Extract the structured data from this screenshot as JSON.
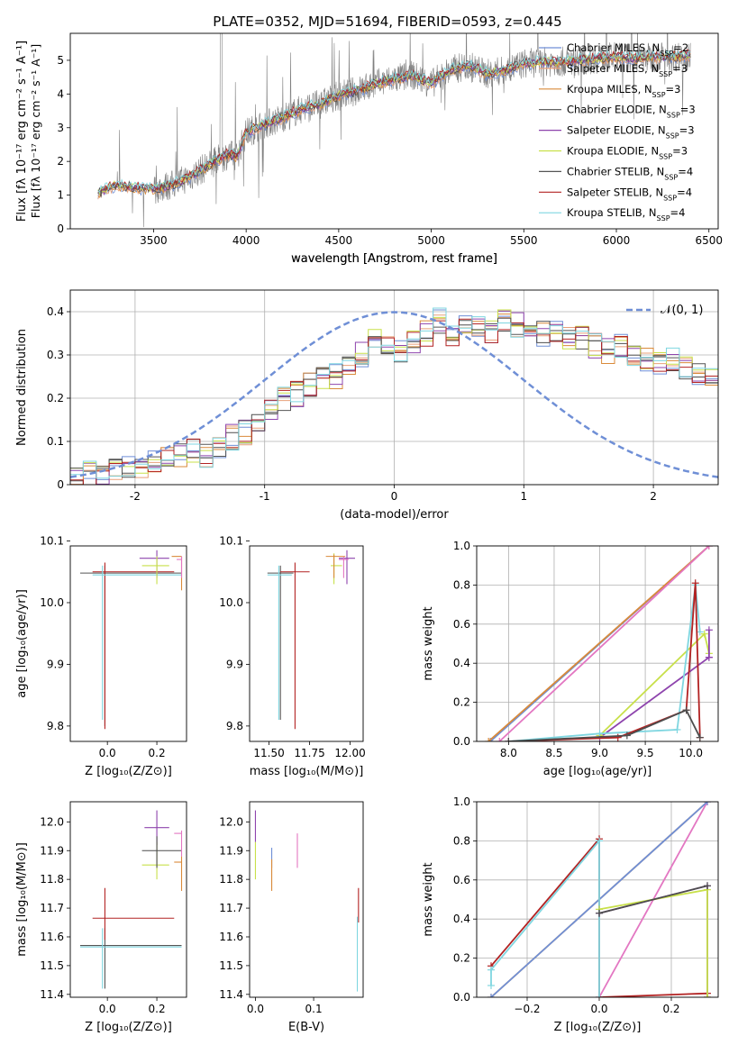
{
  "figure_title": "PLATE=0352, MJD=51694, FIBERID=0593, z=0.445",
  "colors": {
    "Chabrier MILES": "#6f8fd6",
    "Salpeter MILES": "#e8a07a",
    "Kroupa MILES": "#d98a3a",
    "Chabrier ELODIE": "#4d4d4d",
    "Salpeter ELODIE": "#8e44ad",
    "Kroupa ELODIE": "#c8e04a",
    "Chabrier STELIB": "#555555",
    "Salpeter STELIB": "#b22222",
    "Kroupa STELIB": "#7fd6e0",
    "pink": "#e377c2",
    "gauss": "#6f8fd6",
    "data": "#808080"
  },
  "chart_data": [
    {
      "id": "spectrum",
      "type": "line",
      "title": "PLATE=0352, MJD=51694, FIBERID=0593, z=0.445",
      "xlabel": "wavelength [Angstrom, rest frame]",
      "ylabel": "Flux [fλ 10⁻¹⁷ erg cm⁻² s⁻¹ A⁻¹]",
      "xlim": [
        3050,
        6550
      ],
      "ylim": [
        0,
        5.8
      ],
      "xticks": [
        3500,
        4000,
        4500,
        5000,
        5500,
        6000,
        6500
      ],
      "yticks": [
        0,
        1,
        2,
        3,
        4,
        5
      ],
      "legend_position": "right",
      "legend": [
        {
          "name": "Chabrier MILES",
          "nssp": "2"
        },
        {
          "name": "Salpeter MILES",
          "nssp": "3"
        },
        {
          "name": "Kroupa MILES",
          "nssp": "3"
        },
        {
          "name": "Chabrier ELODIE",
          "nssp": "3"
        },
        {
          "name": "Salpeter ELODIE",
          "nssp": "3"
        },
        {
          "name": "Kroupa ELODIE",
          "nssp": "3"
        },
        {
          "name": "Chabrier STELIB",
          "nssp": "4"
        },
        {
          "name": "Salpeter STELIB",
          "nssp": "4"
        },
        {
          "name": "Kroupa STELIB",
          "nssp": "4"
        }
      ],
      "legend_suffix": "N",
      "legend_sub": "SSP",
      "continuum": {
        "x": [
          3200,
          3250,
          3300,
          3350,
          3400,
          3450,
          3500,
          3600,
          3700,
          3800,
          3900,
          3950,
          4000,
          4100,
          4200,
          4300,
          4400,
          4500,
          4600,
          4700,
          4800,
          4900,
          5000,
          5100,
          5200,
          5300,
          5400,
          5500,
          5600,
          5700,
          5800,
          5900,
          6000,
          6100,
          6200,
          6300,
          6400
        ],
        "y": [
          1.05,
          1.2,
          1.3,
          1.25,
          1.22,
          1.2,
          1.18,
          1.3,
          1.55,
          1.9,
          2.2,
          2.15,
          2.85,
          3.1,
          3.3,
          3.55,
          3.7,
          3.95,
          4.1,
          4.3,
          4.45,
          4.55,
          4.3,
          4.7,
          4.85,
          4.6,
          4.7,
          4.9,
          4.95,
          4.95,
          5.0,
          5.05,
          5.1,
          5.05,
          5.1,
          5.1,
          5.15
        ]
      }
    },
    {
      "id": "residuals",
      "type": "histogram",
      "xlabel": "(data-model)/error",
      "ylabel": "Normed distribution",
      "xlim": [
        -2.5,
        2.5
      ],
      "ylim": [
        0,
        0.45
      ],
      "xticks": [
        -2,
        -1,
        0,
        1,
        2
      ],
      "yticks": [
        0.0,
        0.1,
        0.2,
        0.3,
        0.4
      ],
      "grid": true,
      "legend": [
        {
          "name": "𝒩(0, 1)"
        }
      ],
      "legend_position": "top-right",
      "bin_width": 0.1,
      "bin_start": -2.5,
      "base_heights": [
        0.02,
        0.025,
        0.03,
        0.04,
        0.045,
        0.045,
        0.05,
        0.06,
        0.07,
        0.08,
        0.07,
        0.09,
        0.11,
        0.12,
        0.15,
        0.18,
        0.2,
        0.21,
        0.23,
        0.25,
        0.25,
        0.28,
        0.3,
        0.33,
        0.33,
        0.31,
        0.33,
        0.35,
        0.38,
        0.35,
        0.37,
        0.36,
        0.35,
        0.38,
        0.37,
        0.36,
        0.35,
        0.35,
        0.34,
        0.34,
        0.32,
        0.31,
        0.32,
        0.3,
        0.29,
        0.28,
        0.29,
        0.27,
        0.26,
        0.25,
        0.22,
        0.2,
        0.19,
        0.18,
        0.17,
        0.15,
        0.13,
        0.12,
        0.1,
        0.09,
        0.08,
        0.08,
        0.07,
        0.06,
        0.06,
        0.05,
        0.05,
        0.04,
        0.03,
        0.03
      ],
      "series_names": [
        "Chabrier MILES",
        "Salpeter MILES",
        "Kroupa MILES",
        "Chabrier ELODIE",
        "Salpeter ELODIE",
        "Kroupa ELODIE",
        "Chabrier STELIB",
        "Salpeter STELIB",
        "Kroupa STELIB"
      ]
    },
    {
      "id": "age_vs_Z",
      "type": "errorbar",
      "xlabel": "Z [log₁₀(Z/Z⊙)]",
      "ylabel": "age  [log₁₀(age/yr)]",
      "xlim": [
        -0.15,
        0.32
      ],
      "ylim": [
        9.775,
        10.092
      ],
      "xticks": [
        -0.0,
        0.2
      ],
      "xticklabels": [
        "0.0",
        "0.2"
      ],
      "yticks": [
        9.8,
        9.9,
        10.0,
        10.1
      ],
      "yticklabels": [
        "9.8",
        "9.9",
        "10.0",
        "10.1"
      ],
      "points": [
        {
          "s": "Chabrier STELIB",
          "x": -0.01,
          "y": 10.048,
          "xe": [
            -0.11,
            0.3
          ],
          "ye": [
            9.8,
            10.06
          ]
        },
        {
          "s": "Salpeter STELIB",
          "x": -0.01,
          "y": 10.05,
          "xe": [
            -0.06,
            0.27
          ],
          "ye": [
            9.795,
            10.065
          ]
        },
        {
          "s": "Kroupa STELIB",
          "x": -0.02,
          "y": 10.045,
          "xe": [
            -0.06,
            0.3
          ],
          "ye": [
            9.81,
            10.06
          ]
        },
        {
          "s": "Salpeter ELODIE",
          "x": 0.2,
          "y": 10.072,
          "xe": [
            0.13,
            0.25
          ],
          "ye": [
            10.04,
            10.085
          ]
        },
        {
          "s": "Kroupa ELODIE",
          "x": 0.2,
          "y": 10.06,
          "xe": [
            0.14,
            0.25
          ],
          "ye": [
            10.03,
            10.075
          ]
        },
        {
          "s": "Kroupa MILES",
          "x": 0.3,
          "y": 10.075,
          "xe": [
            0.26,
            0.3
          ],
          "ye": [
            10.02,
            10.075
          ]
        },
        {
          "s": "pink",
          "x": 0.3,
          "y": 10.07,
          "xe": [
            0.28,
            0.3
          ],
          "ye": [
            10.04,
            10.075
          ]
        }
      ]
    },
    {
      "id": "age_vs_mass",
      "type": "errorbar",
      "xlabel": "mass [log₁₀(M/M⊙)]",
      "ylabel": "",
      "xlim": [
        11.38,
        12.08
      ],
      "ylim": [
        9.775,
        10.092
      ],
      "xticks": [
        11.5,
        11.75,
        12.0
      ],
      "xticklabels": [
        "11.50",
        "11.75",
        "12.00"
      ],
      "yticks": [
        9.8,
        9.9,
        10.0,
        10.1
      ],
      "yticklabels": [
        "9.8",
        "9.9",
        "10.0",
        "10.1"
      ],
      "points": [
        {
          "s": "Chabrier STELIB",
          "x": 11.57,
          "y": 10.048,
          "xe": [
            11.49,
            11.65
          ],
          "ye": [
            9.81,
            10.06
          ]
        },
        {
          "s": "Salpeter STELIB",
          "x": 11.66,
          "y": 10.05,
          "xe": [
            11.57,
            11.75
          ],
          "ye": [
            9.795,
            10.065
          ]
        },
        {
          "s": "Kroupa STELIB",
          "x": 11.56,
          "y": 10.045,
          "xe": [
            11.49,
            11.64
          ],
          "ye": [
            9.81,
            10.06
          ]
        },
        {
          "s": "Salpeter ELODIE",
          "x": 11.98,
          "y": 10.072,
          "xe": [
            11.93,
            12.03
          ],
          "ye": [
            10.03,
            10.085
          ]
        },
        {
          "s": "Kroupa ELODIE",
          "x": 11.9,
          "y": 10.06,
          "xe": [
            11.88,
            11.95
          ],
          "ye": [
            10.03,
            10.08
          ]
        },
        {
          "s": "Kroupa MILES",
          "x": 11.9,
          "y": 10.075,
          "xe": [
            11.85,
            11.97
          ],
          "ye": [
            10.04,
            10.078
          ]
        },
        {
          "s": "pink",
          "x": 11.96,
          "y": 10.07,
          "xe": [
            11.93,
            11.99
          ],
          "ye": [
            10.04,
            10.075
          ]
        }
      ]
    },
    {
      "id": "massweight_vs_age",
      "type": "line",
      "xlabel": "age  [log₁₀(age/yr)]",
      "ylabel": "mass weight",
      "xlim": [
        7.65,
        10.3
      ],
      "ylim": [
        0,
        1.0
      ],
      "xticks": [
        8.0,
        8.5,
        9.0,
        9.5,
        10.0
      ],
      "xticklabels": [
        "8.0",
        "8.5",
        "9.0",
        "9.5",
        "10.0"
      ],
      "yticks": [
        0,
        0.2,
        0.4,
        0.6,
        0.8,
        1.0
      ],
      "yticklabels": [
        "0.0",
        "0.2",
        "0.4",
        "0.6",
        "0.8",
        "1.0"
      ],
      "grid": true,
      "series": [
        {
          "s": "Chabrier MILES",
          "x": [
            7.8,
            10.2
          ],
          "y": [
            0.0,
            1.0
          ]
        },
        {
          "s": "Kroupa MILES",
          "x": [
            7.78,
            10.2
          ],
          "y": [
            0.0,
            1.0
          ]
        },
        {
          "s": "pink",
          "x": [
            7.9,
            10.2
          ],
          "y": [
            0.0,
            1.0
          ]
        },
        {
          "s": "Salpeter ELODIE",
          "x": [
            8.0,
            9.0,
            10.2
          ],
          "y": [
            0.0,
            0.02,
            0.43
          ]
        },
        {
          "s": "Kroupa ELODIE",
          "x": [
            9.0,
            10.15,
            10.2
          ],
          "y": [
            0.03,
            0.55,
            0.45
          ]
        },
        {
          "s": "Kroupa STELIB",
          "x": [
            8.0,
            9.0,
            9.85,
            10.05,
            10.1
          ],
          "y": [
            0.0,
            0.04,
            0.06,
            0.8,
            0.56
          ]
        },
        {
          "s": "Salpeter STELIB",
          "x": [
            8.0,
            9.2,
            9.95,
            10.05,
            10.1
          ],
          "y": [
            0.0,
            0.02,
            0.16,
            0.81,
            0.02
          ]
        },
        {
          "s": "Chabrier ELODIE",
          "x": [
            8.0,
            9.3,
            9.95,
            10.1
          ],
          "y": [
            0.0,
            0.03,
            0.16,
            0.02
          ]
        },
        {
          "s": "Salpeter ELODIE",
          "x": [
            10.2,
            10.2
          ],
          "y": [
            0.43,
            0.57
          ]
        }
      ]
    },
    {
      "id": "mass_vs_Z",
      "type": "errorbar",
      "xlabel": "Z [log₁₀(Z/Z⊙)]",
      "ylabel": "mass [log₁₀(M/M⊙)]",
      "xlim": [
        -0.15,
        0.32
      ],
      "ylim": [
        11.39,
        12.07
      ],
      "xticks": [
        0.0,
        0.2
      ],
      "xticklabels": [
        "0.0",
        "0.2"
      ],
      "yticks": [
        11.4,
        11.5,
        11.6,
        11.7,
        11.8,
        11.9,
        12.0
      ],
      "yticklabels": [
        "11.4",
        "11.5",
        "11.6",
        "11.7",
        "11.8",
        "11.9",
        "12.0"
      ],
      "points": [
        {
          "s": "Chabrier STELIB",
          "x": -0.01,
          "y": 11.57,
          "xe": [
            -0.11,
            0.3
          ],
          "ye": [
            11.42,
            11.63
          ]
        },
        {
          "s": "Salpeter STELIB",
          "x": -0.01,
          "y": 11.665,
          "xe": [
            -0.06,
            0.27
          ],
          "ye": [
            11.59,
            11.77
          ]
        },
        {
          "s": "Kroupa STELIB",
          "x": -0.02,
          "y": 11.565,
          "xe": [
            -0.11,
            0.3
          ],
          "ye": [
            11.42,
            11.63
          ]
        },
        {
          "s": "Salpeter ELODIE",
          "x": 0.2,
          "y": 11.98,
          "xe": [
            0.15,
            0.25
          ],
          "ye": [
            11.92,
            12.04
          ]
        },
        {
          "s": "Kroupa ELODIE",
          "x": 0.2,
          "y": 11.85,
          "xe": [
            0.14,
            0.25
          ],
          "ye": [
            11.8,
            11.93
          ]
        },
        {
          "s": "Chabrier ELODIE",
          "x": 0.2,
          "y": 11.9,
          "xe": [
            0.14,
            0.3
          ],
          "ye": [
            11.84,
            11.95
          ]
        },
        {
          "s": "Kroupa MILES",
          "x": 0.3,
          "y": 11.86,
          "xe": [
            0.27,
            0.3
          ],
          "ye": [
            11.76,
            11.88
          ]
        },
        {
          "s": "pink",
          "x": 0.3,
          "y": 11.96,
          "xe": [
            0.27,
            0.3
          ],
          "ye": [
            11.88,
            11.97
          ]
        }
      ]
    },
    {
      "id": "mass_vs_EBV",
      "type": "errorbar",
      "xlabel": "E(B-V)",
      "ylabel": "",
      "xlim": [
        -0.01,
        0.185
      ],
      "ylim": [
        11.39,
        12.07
      ],
      "xticks": [
        0.0,
        0.1
      ],
      "xticklabels": [
        "0.0",
        "0.1"
      ],
      "yticks": [
        11.4,
        11.5,
        11.6,
        11.7,
        11.8,
        11.9,
        12.0
      ],
      "yticklabels": [
        "11.4",
        "11.5",
        "11.6",
        "11.7",
        "11.8",
        "11.9",
        "12.0"
      ],
      "points": [
        {
          "s": "Salpeter ELODIE",
          "x": 0.0,
          "y": 11.98,
          "xe": [
            0.0,
            0.0
          ],
          "ye": [
            11.93,
            12.04
          ]
        },
        {
          "s": "Kroupa ELODIE",
          "x": 0.0,
          "y": 11.85,
          "xe": [
            0.0,
            0.0
          ],
          "ye": [
            11.8,
            11.93
          ]
        },
        {
          "s": "Chabrier MILES",
          "x": 0.028,
          "y": 11.87,
          "xe": [
            0.028,
            0.028
          ],
          "ye": [
            11.84,
            11.91
          ]
        },
        {
          "s": "Kroupa MILES",
          "x": 0.028,
          "y": 11.82,
          "xe": [
            0.028,
            0.028
          ],
          "ye": [
            11.76,
            11.87
          ]
        },
        {
          "s": "pink",
          "x": 0.072,
          "y": 11.9,
          "xe": [
            0.072,
            0.072
          ],
          "ye": [
            11.84,
            11.96
          ]
        },
        {
          "s": "Salpeter STELIB",
          "x": 0.177,
          "y": 11.7,
          "xe": [
            0.177,
            0.177
          ],
          "ye": [
            11.65,
            11.77
          ]
        },
        {
          "s": "Kroupa STELIB",
          "x": 0.175,
          "y": 11.55,
          "xe": [
            0.175,
            0.175
          ],
          "ye": [
            11.41,
            11.67
          ]
        }
      ]
    },
    {
      "id": "massweight_vs_Z",
      "type": "line",
      "xlabel": "Z [log₁₀(Z/Z⊙)]",
      "ylabel": "mass weight",
      "xlim": [
        -0.34,
        0.33
      ],
      "ylim": [
        0,
        1.0
      ],
      "xticks": [
        -0.2,
        0.0,
        0.2
      ],
      "xticklabels": [
        "−0.2",
        "0.0",
        "0.2"
      ],
      "yticks": [
        0,
        0.2,
        0.4,
        0.6,
        0.8,
        1.0
      ],
      "yticklabels": [
        "0.0",
        "0.2",
        "0.4",
        "0.6",
        "0.8",
        "1.0"
      ],
      "grid": true,
      "series": [
        {
          "s": "Kroupa MILES",
          "x": [
            -0.3,
            0.3
          ],
          "y": [
            0.0,
            1.0
          ]
        },
        {
          "s": "pink",
          "x": [
            0.0,
            0.3
          ],
          "y": [
            0.0,
            1.0
          ]
        },
        {
          "s": "Chabrier MILES",
          "x": [
            -0.3,
            0.3
          ],
          "y": [
            0.0,
            1.0
          ]
        },
        {
          "s": "Salpeter STELIB",
          "x": [
            -0.3,
            0.0,
            0.0,
            0.3,
            0.3
          ],
          "y": [
            0.16,
            0.81,
            0.0,
            0.02,
            0.0
          ]
        },
        {
          "s": "Kroupa STELIB",
          "x": [
            -0.3,
            -0.3,
            0.0,
            0.0
          ],
          "y": [
            0.06,
            0.14,
            0.8,
            0.0
          ]
        },
        {
          "s": "Salpeter ELODIE",
          "x": [
            0.0,
            0.3,
            0.3
          ],
          "y": [
            0.43,
            0.57,
            0.0
          ]
        },
        {
          "s": "Kroupa ELODIE",
          "x": [
            0.0,
            0.3,
            0.3
          ],
          "y": [
            0.45,
            0.55,
            0.0
          ]
        },
        {
          "s": "Chabrier ELODIE",
          "x": [
            0.0,
            0.3
          ],
          "y": [
            0.43,
            0.57
          ]
        }
      ]
    }
  ]
}
